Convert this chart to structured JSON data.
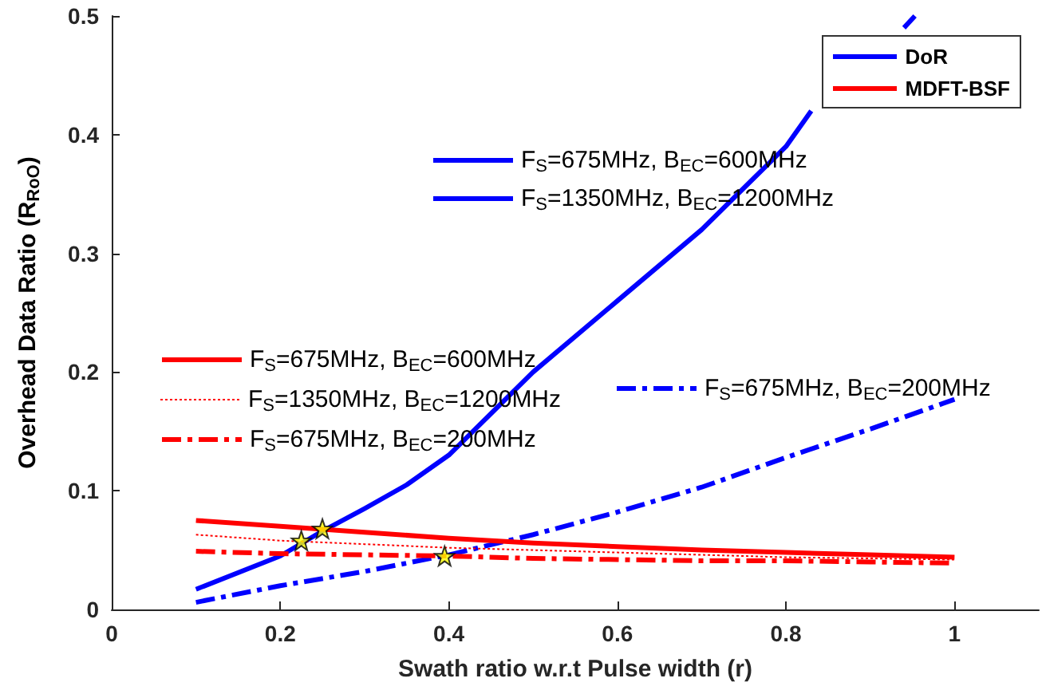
{
  "chart_data": {
    "type": "line",
    "xlabel": "Swath ratio w.r.t Pulse width (r)",
    "ylabel": "Overhead Data Ratio (R$_{RoO}$)",
    "xlim": [
      0,
      1.1
    ],
    "xticks": [
      0,
      0.2,
      0.4,
      0.6,
      0.8,
      1
    ],
    "ylim": [
      0,
      0.5
    ],
    "yticks": [
      0,
      0.1,
      0.2,
      0.3,
      0.4,
      0.5
    ],
    "grid": false,
    "legend": "top right",
    "annotations": [
      "DoR",
      "MDFT-BSF"
    ],
    "series": [
      {
        "name": "F$_{S}$=675MHz, B$_{EC}$=600MHz",
        "color": "#0000ff",
        "line_style": "solid",
        "x": [
          0.1,
          0.2,
          0.25,
          0.3,
          0.35,
          0.4,
          0.5,
          0.6,
          0.7,
          0.8,
          0.83,
          0.9,
          0.94,
          0.953
        ],
        "values": [
          0.017,
          0.045,
          0.066,
          0.085,
          0.105,
          0.13,
          0.2,
          0.26,
          0.32,
          0.39,
          0.42,
          null,
          0.49,
          0.5
        ]
      },
      {
        "name": "F$_{S}$=1350MHz, B$_{EC}$=1200MHz",
        "color": "#0000ff",
        "line_style": "solid",
        "values": [
          null
        ]
      },
      {
        "name": "F$_{S}$=675MHz, B$_{EC}$=200MHz",
        "color": "#0000ff",
        "line_style": "dashed",
        "x": [
          0.1,
          0.2,
          0.3,
          0.4,
          0.5,
          0.6,
          0.7,
          0.8,
          0.9,
          1.0
        ],
        "values": [
          0.006,
          0.02,
          0.032,
          0.046,
          0.063,
          0.082,
          0.103,
          0.128,
          0.152,
          0.177
        ]
      },
      {
        "name": "F$_{S}$=675MHz, B$_{EC}$=600MHz",
        "color": "#ff0000",
        "line_style": "solid",
        "x": [
          0.1,
          0.2,
          0.3,
          0.4,
          0.5,
          0.6,
          0.7,
          0.8,
          0.9,
          1.0
        ],
        "values": [
          0.075,
          0.07,
          0.065,
          0.06,
          0.056,
          0.053,
          0.05,
          0.048,
          0.046,
          0.044
        ]
      },
      {
        "name": "F$_{S}$=1350MHz, B$_{EC}$=1200MHz",
        "color": "#ff0000",
        "line_style": "dotted",
        "x": [
          0.1,
          0.2,
          0.3,
          0.4,
          0.5,
          0.6,
          0.7,
          0.8,
          0.9,
          1.0
        ],
        "values": [
          0.063,
          0.058,
          0.055,
          0.052,
          0.05,
          0.048,
          0.046,
          0.044,
          0.043,
          0.042
        ]
      },
      {
        "name": "F$_{S}$=675MHz, B$_{EC}$=200MHz",
        "color": "#ff0000",
        "line_style": "dashed",
        "x": [
          0.1,
          0.2,
          0.3,
          0.4,
          0.5,
          0.6,
          0.7,
          0.8,
          0.9,
          1.0
        ],
        "values": [
          0.049,
          0.047,
          0.046,
          0.045,
          0.043,
          0.042,
          0.041,
          0.041,
          0.04,
          0.039
        ]
      },
      {
        "type": "scatter",
        "color": "#ffff00",
        "marker": "star",
        "x": [
          0.225,
          0.25,
          0.395
        ],
        "values": [
          0.058,
          0.068,
          0.045
        ]
      }
    ]
  }
}
